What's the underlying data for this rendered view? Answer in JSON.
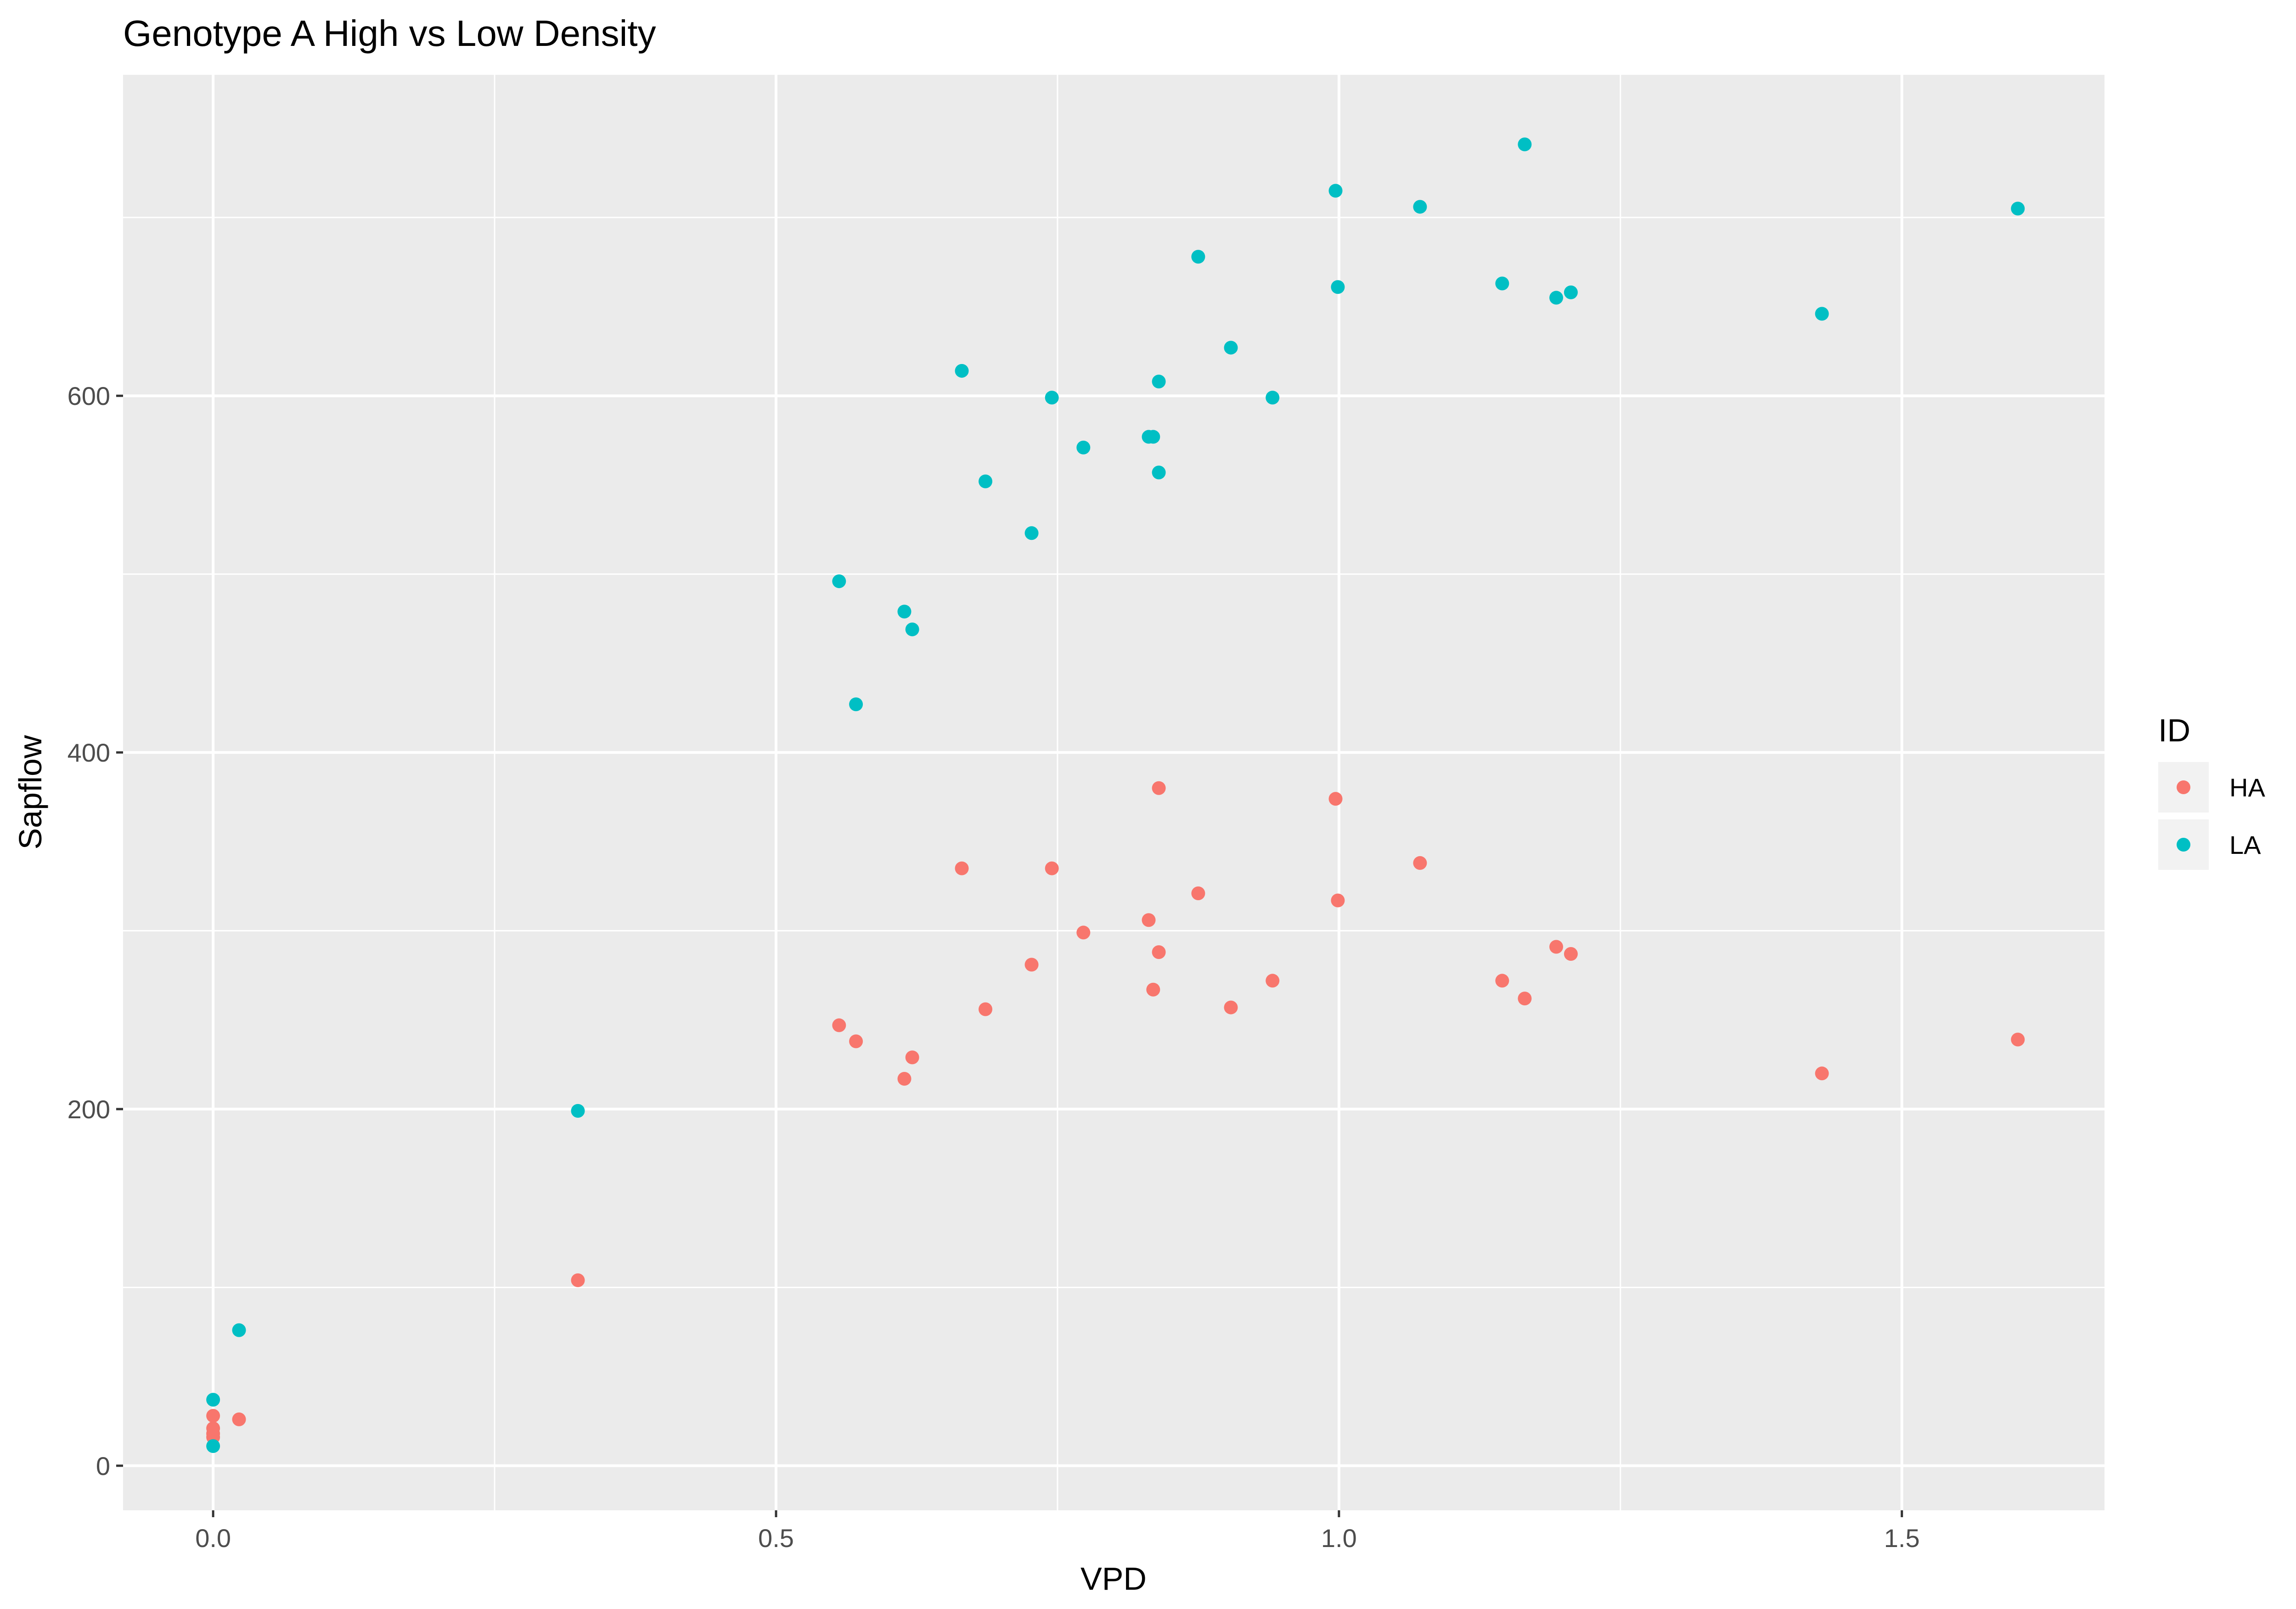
{
  "chart_data": {
    "type": "scatter",
    "title": "Genotype A High vs Low Density",
    "xlabel": "VPD",
    "ylabel": "Sapflow",
    "xlim": [
      -0.08,
      1.68
    ],
    "ylim": [
      -25,
      780
    ],
    "x_ticks": [
      0.0,
      0.5,
      1.0,
      1.5
    ],
    "x_tick_labels": [
      "0.0",
      "0.5",
      "1.0",
      "1.5"
    ],
    "y_ticks": [
      0,
      200,
      400,
      600
    ],
    "y_tick_labels": [
      "0",
      "200",
      "400",
      "600"
    ],
    "grid": true,
    "legend": {
      "title": "ID",
      "placement": "right"
    },
    "colors": {
      "panel_bg": "#ebebeb",
      "grid": "#ffffff",
      "HA": "#f8766d",
      "LA": "#00bfc4"
    },
    "series": [
      {
        "name": "HA",
        "points": [
          [
            0.0,
            28
          ],
          [
            0.0,
            21
          ],
          [
            0.0,
            18
          ],
          [
            0.0,
            16
          ],
          [
            0.023,
            26
          ],
          [
            0.324,
            104
          ],
          [
            0.556,
            247
          ],
          [
            0.571,
            238
          ],
          [
            0.614,
            217
          ],
          [
            0.621,
            229
          ],
          [
            0.665,
            335
          ],
          [
            0.686,
            256
          ],
          [
            0.727,
            281
          ],
          [
            0.745,
            335
          ],
          [
            0.773,
            299
          ],
          [
            0.831,
            306
          ],
          [
            0.835,
            267
          ],
          [
            0.84,
            380
          ],
          [
            0.84,
            288
          ],
          [
            0.875,
            321
          ],
          [
            0.904,
            257
          ],
          [
            0.941,
            272
          ],
          [
            0.997,
            374
          ],
          [
            0.999,
            317
          ],
          [
            1.072,
            338
          ],
          [
            1.145,
            272
          ],
          [
            1.165,
            262
          ],
          [
            1.193,
            291
          ],
          [
            1.206,
            287
          ],
          [
            1.429,
            220
          ],
          [
            1.603,
            239
          ]
        ]
      },
      {
        "name": "LA",
        "points": [
          [
            0.0,
            37
          ],
          [
            0.0,
            11
          ],
          [
            0.023,
            76
          ],
          [
            0.324,
            199
          ],
          [
            0.556,
            496
          ],
          [
            0.571,
            427
          ],
          [
            0.614,
            479
          ],
          [
            0.621,
            469
          ],
          [
            0.665,
            614
          ],
          [
            0.686,
            552
          ],
          [
            0.727,
            523
          ],
          [
            0.745,
            599
          ],
          [
            0.773,
            571
          ],
          [
            0.831,
            577
          ],
          [
            0.835,
            577
          ],
          [
            0.84,
            608
          ],
          [
            0.84,
            557
          ],
          [
            0.875,
            678
          ],
          [
            0.904,
            627
          ],
          [
            0.941,
            599
          ],
          [
            0.997,
            715
          ],
          [
            0.999,
            661
          ],
          [
            1.072,
            706
          ],
          [
            1.145,
            663
          ],
          [
            1.165,
            741
          ],
          [
            1.193,
            655
          ],
          [
            1.206,
            658
          ],
          [
            1.429,
            646
          ],
          [
            1.603,
            705
          ]
        ]
      }
    ]
  }
}
